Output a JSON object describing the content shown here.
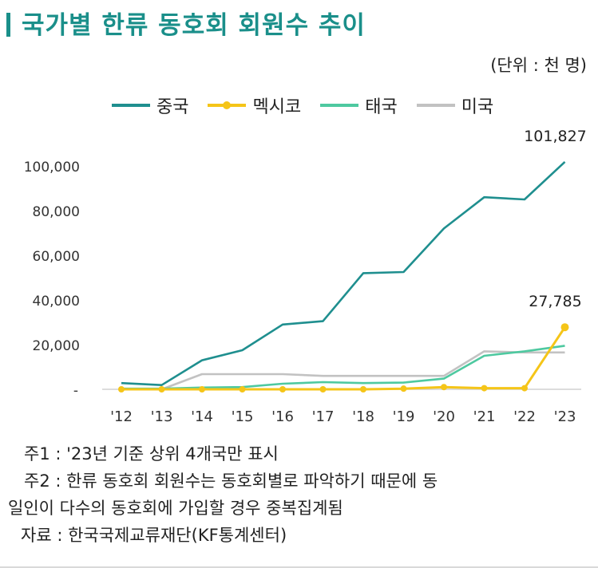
{
  "title": "국가별 한류 동호회 회원수 추이",
  "unit": "(단위 : 천 명)",
  "colors": {
    "china": "#1f8f8f",
    "mexico": "#f5c518",
    "thailand": "#4ec9a0",
    "usa": "#c2c2c2"
  },
  "chart_data": {
    "type": "line",
    "categories": [
      "'12",
      "'13",
      "'14",
      "'15",
      "'16",
      "'17",
      "'18",
      "'19",
      "'20",
      "'21",
      "'22",
      "'23"
    ],
    "ylim": [
      0,
      110000
    ],
    "yticks": [
      0,
      20000,
      40000,
      60000,
      80000,
      100000
    ],
    "ytick_labels": [
      "-",
      "20,000",
      "40,000",
      "60,000",
      "80,000",
      "100,000"
    ],
    "legend_placement": "top",
    "grid": false,
    "series": [
      {
        "name": "중국",
        "key": "china",
        "values": [
          2800,
          1900,
          13000,
          17500,
          29000,
          30500,
          52000,
          52500,
          72000,
          86000,
          85000,
          101827
        ],
        "markers": false
      },
      {
        "name": "멕시코",
        "key": "mexico",
        "values": [
          0,
          0,
          0,
          0,
          0,
          0,
          0,
          300,
          1000,
          500,
          500,
          27785
        ],
        "markers": true
      },
      {
        "name": "태국",
        "key": "thailand",
        "values": [
          300,
          300,
          800,
          1000,
          2500,
          3200,
          2800,
          3000,
          4800,
          15000,
          17000,
          19500
        ],
        "markers": false
      },
      {
        "name": "미국",
        "key": "usa",
        "values": [
          0,
          0,
          6800,
          6800,
          6800,
          6000,
          6000,
          6000,
          6000,
          17000,
          16500,
          16500
        ],
        "markers": false
      }
    ],
    "annotations": [
      {
        "series": "china",
        "index": 11,
        "text": "101,827"
      },
      {
        "series": "mexico",
        "index": 11,
        "text": "27,785"
      }
    ]
  },
  "notes": [
    "주1 : '23년 기준 상위 4개국만 표시",
    "주2 : 한류 동호회 회원수는 동호회별로 파악하기 때문에 동",
    "일인이 다수의 동호회에 가입할 경우 중복집계됨",
    "자료 : 한국국제교류재단(KF통계센터)"
  ]
}
